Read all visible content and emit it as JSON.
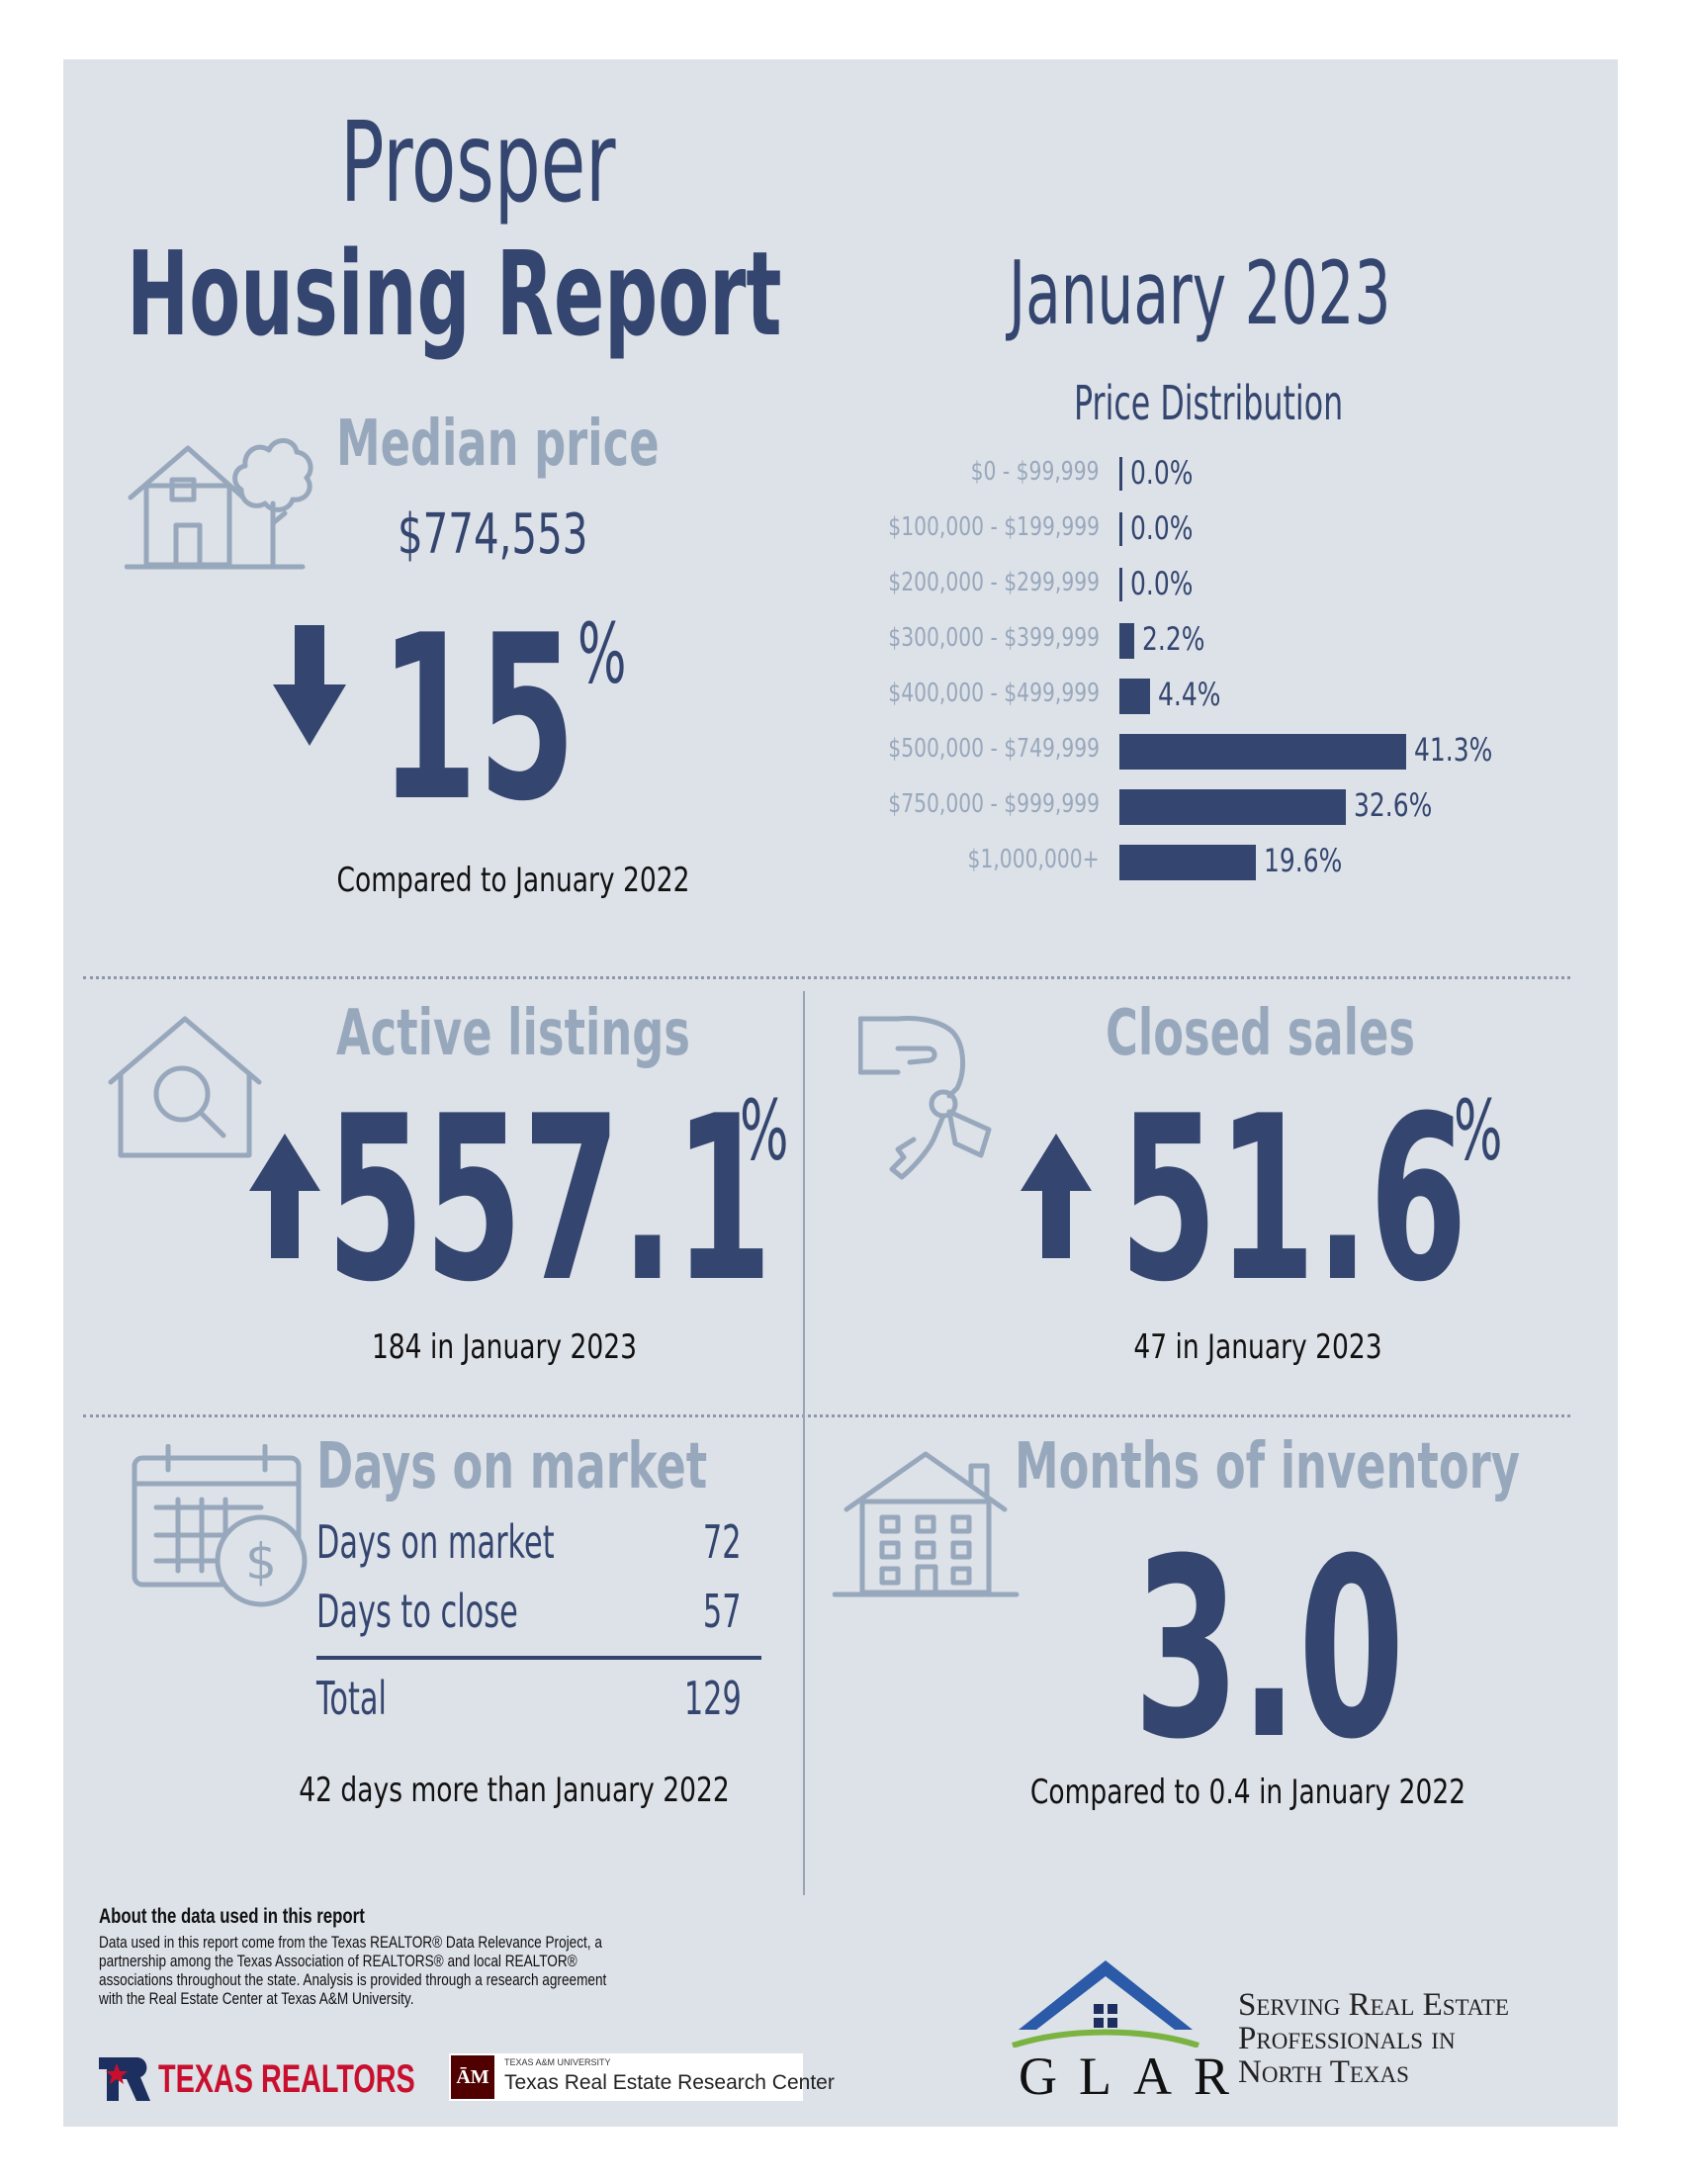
{
  "header": {
    "city": "Prosper",
    "report_title": "Housing Report",
    "period": "January 2023"
  },
  "median_price": {
    "heading": "Median price",
    "value": "$774,553",
    "change_value": "15",
    "change_unit": "%",
    "direction": "down",
    "comparison": "Compared to January 2022"
  },
  "price_distribution": {
    "heading": "Price Distribution"
  },
  "chart_data": {
    "type": "bar",
    "orientation": "horizontal",
    "title": "Price Distribution",
    "categories": [
      "$0 - $99,999",
      "$100,000 - $199,999",
      "$200,000 - $299,999",
      "$300,000 - $399,999",
      "$400,000 - $499,999",
      "$500,000 - $749,999",
      "$750,000 - $999,999",
      "$1,000,000+"
    ],
    "values": [
      0.0,
      0.0,
      0.0,
      2.2,
      4.4,
      41.3,
      32.6,
      19.6
    ],
    "value_labels": [
      "0.0%",
      "0.0%",
      "0.0%",
      "2.2%",
      "4.4%",
      "41.3%",
      "32.6%",
      "19.6%"
    ],
    "unit": "%",
    "color": "#34466f"
  },
  "active_listings": {
    "heading": "Active listings",
    "change_value": "557.1",
    "change_unit": "%",
    "direction": "up",
    "caption": "184 in January 2023"
  },
  "closed_sales": {
    "heading": "Closed sales",
    "change_value": "51.6",
    "change_unit": "%",
    "direction": "up",
    "caption": "47 in January 2023"
  },
  "days_on_market": {
    "heading": "Days on market",
    "rows": [
      {
        "label": "Days on market",
        "value": "72"
      },
      {
        "label": "Days to close",
        "value": "57"
      }
    ],
    "total_label": "Total",
    "total_value": "129",
    "caption": "42 days more than January 2022"
  },
  "months_inventory": {
    "heading": "Months of inventory",
    "value": "3.0",
    "caption": "Compared to 0.4 in January 2022"
  },
  "about": {
    "title": "About the data used in this report",
    "lines": [
      "Data used in this report come from the Texas REALTOR® Data Relevance Project, a",
      "partnership among the Texas Association of REALTORS® and local REALTOR®",
      "associations throughout the state. Analysis is provided through a research agreement",
      "with the Real Estate Center at Texas A&M University."
    ]
  },
  "logos": {
    "texas_realtors": "TEXAS REALTORS",
    "tamu_small": "TEXAS A&M UNIVERSITY",
    "tamu_center": "Texas Real Estate Research Center",
    "glar": "GLAR",
    "glar_tagline": [
      "Serving Real Estate",
      "Professionals in",
      "North Texas"
    ]
  },
  "colors": {
    "navy": "#34466f",
    "light": "#98a8bc",
    "panel": "#dde1e8"
  }
}
